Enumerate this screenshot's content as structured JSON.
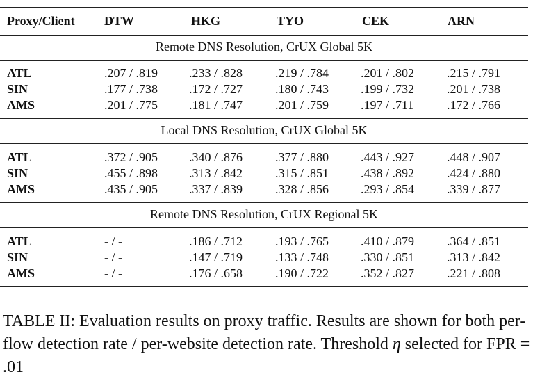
{
  "columns": [
    "Proxy/Client",
    "DTW",
    "HKG",
    "TYO",
    "CEK",
    "ARN"
  ],
  "sections": [
    {
      "title": "Remote DNS Resolution, CrUX Global 5K",
      "rows": [
        {
          "label": "ATL",
          "values": [
            ".207 / .819",
            ".233 / .828",
            ".219 / .784",
            ".201 / .802",
            ".215 / .791"
          ]
        },
        {
          "label": "SIN",
          "values": [
            ".177 / .738",
            ".172 / .727",
            ".180 / .743",
            ".199 / .732",
            ".201 / .738"
          ]
        },
        {
          "label": "AMS",
          "values": [
            ".201 / .775",
            ".181 / .747",
            ".201 / .759",
            ".197 / .711",
            ".172 / .766"
          ]
        }
      ]
    },
    {
      "title": "Local DNS Resolution, CrUX Global 5K",
      "rows": [
        {
          "label": "ATL",
          "values": [
            ".372 / .905",
            ".340 / .876",
            ".377 / .880",
            ".443 / .927",
            ".448 / .907"
          ]
        },
        {
          "label": "SIN",
          "values": [
            ".455 / .898",
            ".313 / .842",
            ".315 / .851",
            ".438 / .892",
            ".424 / .880"
          ]
        },
        {
          "label": "AMS",
          "values": [
            ".435 / .905",
            ".337 / .839",
            ".328 / .856",
            ".293 / .854",
            ".339 / .877"
          ]
        }
      ]
    },
    {
      "title": "Remote DNS Resolution, CrUX Regional 5K",
      "rows": [
        {
          "label": "ATL",
          "values": [
            "- / -",
            ".186 / .712",
            ".193 / .765",
            ".410 / .879",
            ".364 / .851"
          ]
        },
        {
          "label": "SIN",
          "values": [
            "- / -",
            ".147 / .719",
            ".133 / .748",
            ".330 / .851",
            ".313 / .842"
          ]
        },
        {
          "label": "AMS",
          "values": [
            "- / -",
            ".176 / .658",
            ".190 / .722",
            ".352 / .827",
            ".221 / .808"
          ]
        }
      ]
    }
  ],
  "caption": {
    "text_before_symbol": "TABLE II: Evaluation results on proxy traffic. Results are shown for both per-flow detection rate / per-website detection rate. Threshold ",
    "symbol": "η",
    "text_after_symbol": " selected for FPR = .01"
  }
}
